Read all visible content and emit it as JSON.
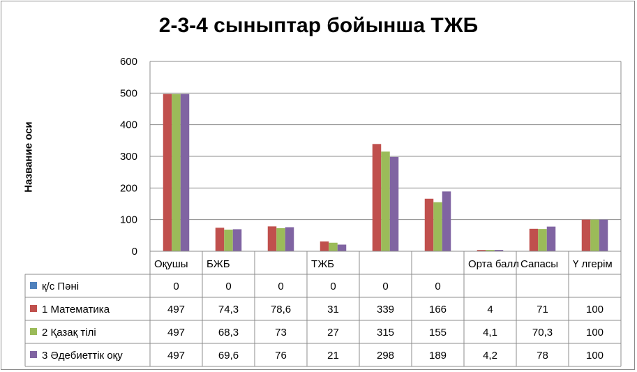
{
  "chart_data": {
    "type": "bar",
    "title": "2-3-4 сыныптар бойынша ТЖБ",
    "ylabel": "Название оси",
    "xlabel": "",
    "ylim": [
      0,
      600
    ],
    "yticks": [
      0,
      100,
      200,
      300,
      400,
      500,
      600
    ],
    "grid": true,
    "legend": "data-table-left",
    "categories": [
      "Оқушы",
      "БЖБ",
      "",
      "ТЖБ",
      "",
      "",
      "Орта балл",
      "Сапасы",
      "Ү лгерім"
    ],
    "series": [
      {
        "name": "қ/с Пәні",
        "color": "#4f81bd",
        "values": [
          0,
          0,
          0,
          0,
          0,
          0,
          null,
          null,
          null
        ],
        "labels": [
          "0",
          "0",
          "0",
          "0",
          "0",
          "0",
          "",
          "",
          ""
        ]
      },
      {
        "name": "1 Математика",
        "color": "#c0504d",
        "values": [
          497,
          74.3,
          78.6,
          31,
          339,
          166,
          4,
          71,
          100
        ],
        "labels": [
          "497",
          "74,3",
          "78,6",
          "31",
          "339",
          "166",
          "4",
          "71",
          "100"
        ]
      },
      {
        "name": "2 Қазақ тілі",
        "color": "#9bbb59",
        "values": [
          497,
          68.3,
          73,
          27,
          315,
          155,
          4.1,
          70.3,
          100
        ],
        "labels": [
          "497",
          "68,3",
          "73",
          "27",
          "315",
          "155",
          "4,1",
          "70,3",
          "100"
        ]
      },
      {
        "name": "3 Әдебиеттік оқу",
        "color": "#8064a2",
        "values": [
          497,
          69.6,
          76,
          21,
          298,
          189,
          4.2,
          78,
          100
        ],
        "labels": [
          "497",
          "69,6",
          "76",
          "21",
          "298",
          "189",
          "4,2",
          "78",
          "100"
        ]
      }
    ]
  }
}
